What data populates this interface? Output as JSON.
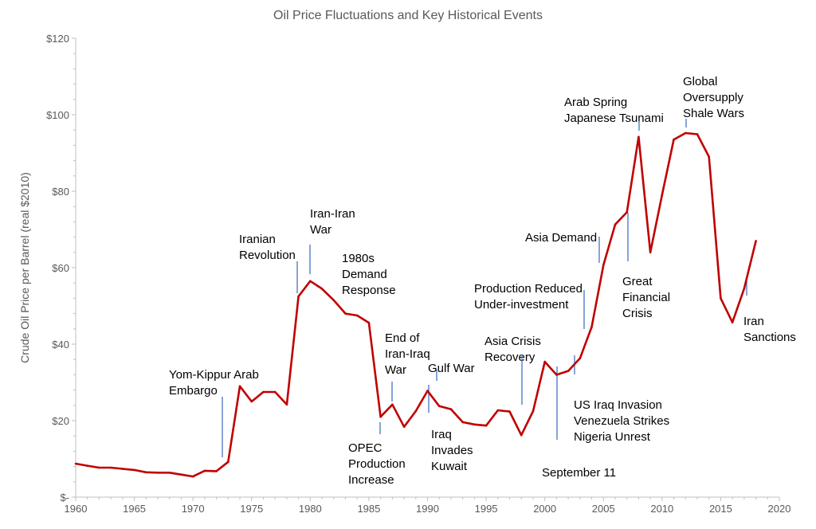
{
  "chart_data": {
    "type": "line",
    "title": "Oil Price Fluctuations and Key Historical Events",
    "xlabel": "",
    "ylabel": "Crude Oil Price per Barrel (real $2010)",
    "xlim": [
      1960,
      2020
    ],
    "ylim": [
      0,
      120
    ],
    "x_ticks": [
      "1960",
      "1965",
      "1970",
      "1975",
      "1980",
      "1985",
      "1990",
      "1995",
      "2000",
      "2005",
      "2010",
      "2015",
      "2020"
    ],
    "y_ticks": [
      "$-",
      "$20",
      "$40",
      "$60",
      "$80",
      "$100",
      "$120"
    ],
    "grid": false,
    "line_color": "#C00000",
    "annotation_color": "#4472C4",
    "series": [
      {
        "x": [
          1960,
          1961,
          1962,
          1963,
          1964,
          1965,
          1966,
          1967,
          1968,
          1969,
          1970,
          1971,
          1972,
          1973,
          1974,
          1975,
          1976,
          1977,
          1978,
          1979,
          1980,
          1981,
          1982,
          1983,
          1984,
          1985,
          1986,
          1987,
          1988,
          1989,
          1990,
          1991,
          1992,
          1993,
          1994,
          1995,
          1996,
          1997,
          1998,
          1999,
          2000,
          2001,
          2002,
          2003,
          2004,
          2005,
          2006,
          2007,
          2008,
          2009,
          2010,
          2011,
          2012,
          2013,
          2014,
          2015,
          2016,
          2017,
          2018
        ],
        "values": [
          8.75,
          8.2,
          7.7,
          7.7,
          7.4,
          7.1,
          6.5,
          6.4,
          6.4,
          5.9,
          5.4,
          6.9,
          6.8,
          9.2,
          29.0,
          25.0,
          27.5,
          27.5,
          24.2,
          52.5,
          56.5,
          54.5,
          51.5,
          48.0,
          47.5,
          45.6,
          21.0,
          24.2,
          18.4,
          22.5,
          27.8,
          23.8,
          23.0,
          19.6,
          19.0,
          18.7,
          22.7,
          22.4,
          16.2,
          22.5,
          35.4,
          32.0,
          33.0,
          36.3,
          44.5,
          60.7,
          71.3,
          74.5,
          94.2,
          64.0,
          79.0,
          93.5,
          95.2,
          94.9,
          89.0,
          52.0,
          45.7,
          54.5,
          67.0
        ]
      }
    ],
    "annotations": [
      {
        "lines": [
          "Yom-Kippur Arab",
          "Embargo"
        ],
        "year": 1973
      },
      {
        "lines": [
          "Iranian",
          "Revolution"
        ],
        "year": 1979
      },
      {
        "lines": [
          "Iran-Iran",
          "War"
        ],
        "year": 1980
      },
      {
        "lines": [
          "1980s",
          "Demand",
          "Response"
        ],
        "year": 1983
      },
      {
        "lines": [
          "End of",
          "Iran-Iraq",
          "War"
        ],
        "year": 1987
      },
      {
        "lines": [
          "OPEC",
          "Production",
          "Increase"
        ],
        "year": 1986
      },
      {
        "lines": [
          "Gulf War"
        ],
        "year": 1991
      },
      {
        "lines": [
          "Iraq",
          "Invades",
          "Kuwait"
        ],
        "year": 1990
      },
      {
        "lines": [
          "Asia Crisis",
          "Recovery"
        ],
        "year": 1998
      },
      {
        "lines": [
          "September 11"
        ],
        "year": 2001
      },
      {
        "lines": [
          "Production Reduced",
          "Under-investment"
        ],
        "year": 2003
      },
      {
        "lines": [
          "US Iraq Invasion",
          "Venezuela Strikes",
          "Nigeria Unrest"
        ],
        "year": 2002
      },
      {
        "lines": [
          "Asia Demand"
        ],
        "year": 2005
      },
      {
        "lines": [
          "Great",
          "Financial",
          "Crisis"
        ],
        "year": 2007
      },
      {
        "lines": [
          "Arab Spring",
          "Japanese Tsunami"
        ],
        "year": 2008
      },
      {
        "lines": [
          "Global",
          "Oversupply",
          "Shale Wars"
        ],
        "year": 2012
      },
      {
        "lines": [
          "Iran",
          "Sanctions"
        ],
        "year": 2017
      }
    ]
  }
}
